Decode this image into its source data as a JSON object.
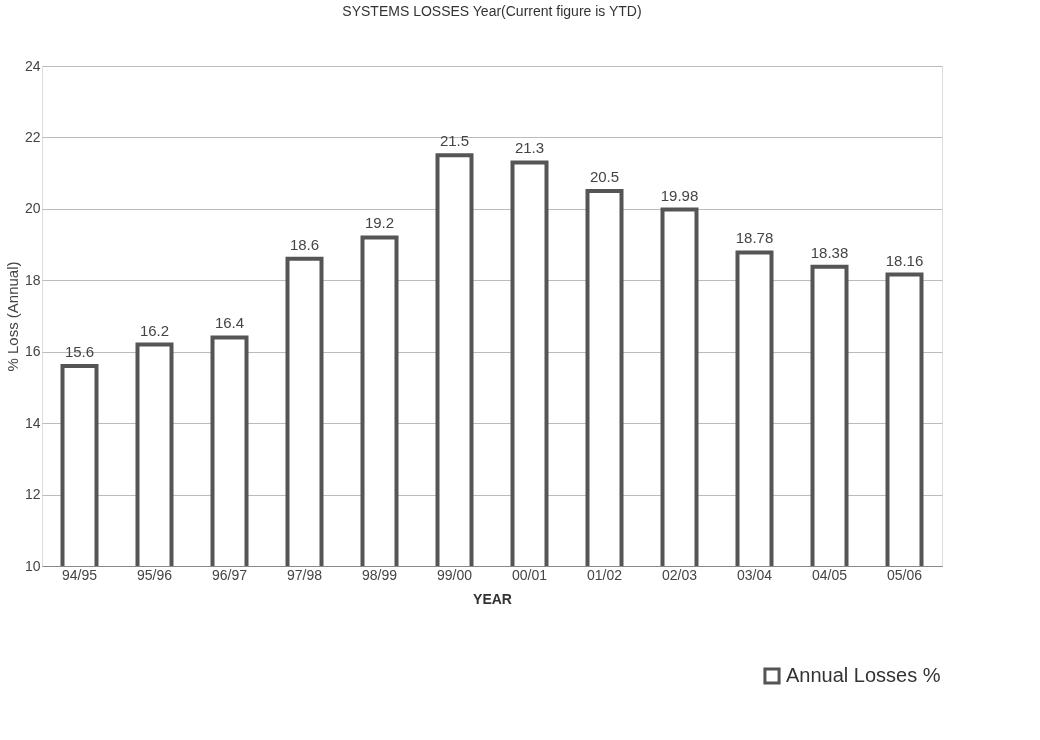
{
  "chart_data": {
    "type": "bar",
    "title": "SYSTEMS LOSSES Year(Current figure is YTD)",
    "xlabel": "YEAR",
    "ylabel": "% Loss (Annual)",
    "categories": [
      "94/95",
      "95/96",
      "96/97",
      "97/98",
      "98/99",
      "99/00",
      "00/01",
      "01/02",
      "02/03",
      "03/04",
      "04/05",
      "05/06"
    ],
    "series": [
      {
        "name": "Annual Losses  %",
        "color": "#ffffff",
        "values": [
          15.6,
          16.2,
          16.4,
          18.6,
          19.2,
          21.5,
          21.3,
          20.5,
          19.98,
          18.78,
          18.38,
          18.16
        ]
      }
    ],
    "ylim": [
      10,
      24
    ],
    "yticks": [
      10,
      12,
      14,
      16,
      18,
      20,
      22,
      24
    ],
    "grid": "y",
    "data_labels": true,
    "legend": "bottom right"
  }
}
